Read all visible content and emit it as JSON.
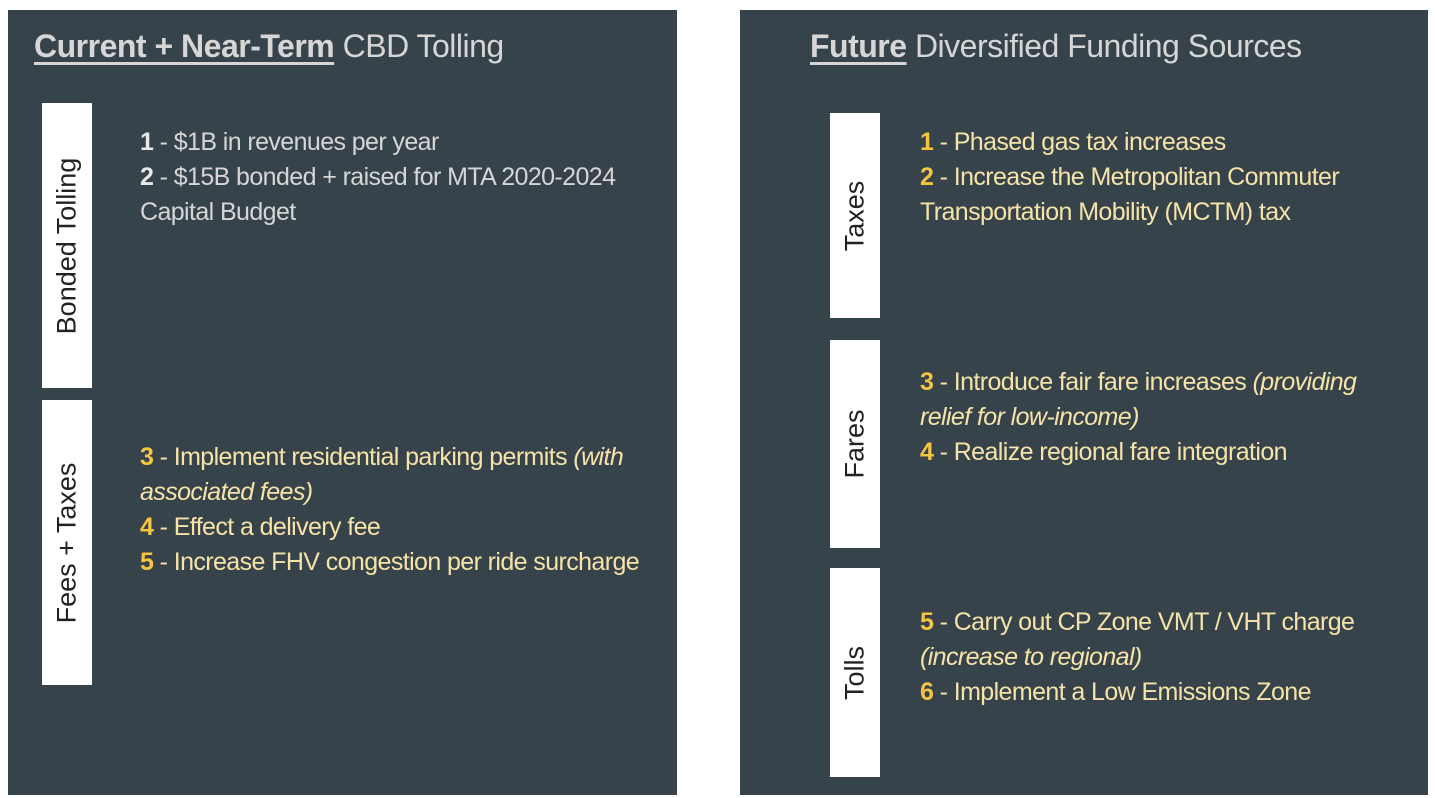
{
  "panels": [
    {
      "title_emph": "Current + Near-Term",
      "title_rest": " CBD Tolling",
      "sections": [
        {
          "label": "Bonded Tolling",
          "color": "#d6d6d6",
          "number_color": "#e8e8e8",
          "items": [
            {
              "number": "1",
              "text": " - $1B in revenues per year"
            },
            {
              "number": "2",
              "text": " - $15B bonded + raised for MTA 2020-2024 Capital Budget"
            }
          ]
        },
        {
          "label": "Fees + Taxes",
          "color": "#f6e3a8",
          "number_color": "#f5c542",
          "items": [
            {
              "number": "3",
              "text": " - Implement residential parking permits ",
              "note": "(with associated fees)"
            },
            {
              "number": "4",
              "text": " - Effect a delivery fee"
            },
            {
              "number": "5",
              "text": " - Increase FHV congestion per ride surcharge"
            }
          ]
        }
      ]
    },
    {
      "title_emph": "Future",
      "title_rest": " Diversified Funding Sources",
      "sections": [
        {
          "label": "Taxes",
          "color": "#f6e3a8",
          "number_color": "#f5c542",
          "items": [
            {
              "number": "1",
              "text": " - Phased gas tax increases"
            },
            {
              "number": "2",
              "text": " - Increase the Metropolitan Commuter Transportation Mobility (MCTM) tax"
            }
          ]
        },
        {
          "label": "Fares",
          "color": "#f6e3a8",
          "number_color": "#f5c542",
          "items": [
            {
              "number": "3",
              "text": " - Introduce fair fare increases ",
              "note": "(providing relief for low-income)"
            },
            {
              "number": "4",
              "text": " - Realize regional fare integration"
            }
          ]
        },
        {
          "label": "Tolls",
          "color": "#f6e3a8",
          "number_color": "#f5c542",
          "items": [
            {
              "number": "5",
              "text": " - Carry out CP Zone VMT / VHT charge ",
              "note": "(increase to regional)"
            },
            {
              "number": "6",
              "text": " - Implement a Low Emissions Zone"
            }
          ]
        }
      ]
    }
  ]
}
